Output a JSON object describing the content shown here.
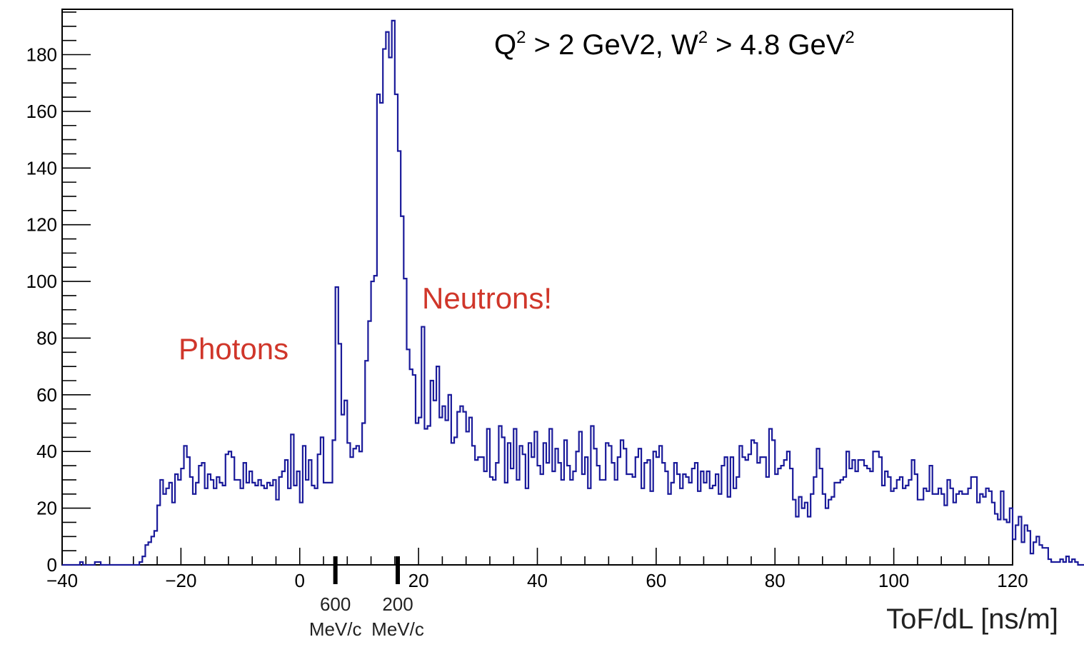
{
  "chart_data": {
    "type": "histogram",
    "title_parts": [
      {
        "text": "Q",
        "sup": false
      },
      {
        "text": "2",
        "sup": true
      },
      {
        "text": " > 2 GeV2, W",
        "sup": false
      },
      {
        "text": "2",
        "sup": true
      },
      {
        "text": " > 4.8 GeV",
        "sup": false
      },
      {
        "text": "2",
        "sup": true
      }
    ],
    "xlabel": "ToF/dL  [ns/m]",
    "xlim": [
      -40,
      120
    ],
    "ylim": [
      0,
      196
    ],
    "x_ticks": [
      -40,
      -20,
      0,
      20,
      40,
      60,
      80,
      100,
      120
    ],
    "x_tick_labels": [
      "−40",
      "−20",
      "0",
      "20",
      "40",
      "60",
      "80",
      "100",
      "120"
    ],
    "y_ticks": [
      0,
      20,
      40,
      60,
      80,
      100,
      120,
      140,
      160,
      180
    ],
    "y_tick_labels": [
      "0",
      "20",
      "40",
      "60",
      "80",
      "100",
      "120",
      "140",
      "160",
      "180"
    ],
    "bin_start": -40,
    "bin_width": 0.5,
    "counts": [
      0,
      0,
      0,
      0,
      0,
      0,
      1,
      0,
      0,
      0,
      0,
      1,
      1,
      0,
      0,
      0,
      0,
      0,
      0,
      0,
      0,
      0,
      0,
      0,
      0,
      0,
      1,
      3,
      7,
      8,
      10,
      12,
      21,
      30,
      25,
      27,
      29,
      22,
      32,
      30,
      34,
      42,
      38,
      31,
      25,
      29,
      35,
      36,
      27,
      32,
      30,
      27,
      31,
      29,
      28,
      39,
      40,
      38,
      30,
      30,
      27,
      36,
      29,
      33,
      29,
      28,
      30,
      28,
      27,
      29,
      28,
      30,
      23,
      31,
      33,
      37,
      27,
      46,
      28,
      33,
      22,
      42,
      30,
      37,
      28,
      27,
      39,
      45,
      29,
      29,
      29,
      44,
      98,
      78,
      53,
      58,
      43,
      38,
      41,
      42,
      40,
      50,
      72,
      86,
      100,
      102,
      166,
      163,
      182,
      188,
      179,
      192,
      166,
      146,
      123,
      101,
      76,
      69,
      67,
      50,
      52,
      84,
      48,
      49,
      65,
      58,
      70,
      52,
      56,
      51,
      60,
      43,
      45,
      54,
      56,
      54,
      47,
      52,
      42,
      37,
      38,
      38,
      33,
      48,
      31,
      30,
      36,
      49,
      45,
      29,
      43,
      34,
      48,
      30,
      42,
      39,
      27,
      43,
      38,
      47,
      35,
      32,
      43,
      36,
      48,
      33,
      41,
      36,
      30,
      44,
      35,
      30,
      33,
      40,
      47,
      32,
      38,
      27,
      49,
      41,
      35,
      30,
      30,
      43,
      42,
      36,
      30,
      38,
      44,
      41,
      32,
      32,
      31,
      38,
      41,
      27,
      36,
      37,
      26,
      40,
      38,
      42,
      36,
      33,
      25,
      29,
      36,
      32,
      27,
      32,
      31,
      29,
      34,
      36,
      26,
      33,
      29,
      33,
      27,
      28,
      32,
      25,
      35,
      38,
      24,
      38,
      27,
      31,
      42,
      38,
      37,
      39,
      44,
      43,
      36,
      38,
      38,
      31,
      48,
      44,
      32,
      34,
      35,
      37,
      40,
      34,
      23,
      17,
      24,
      20,
      22,
      17,
      25,
      31,
      41,
      34,
      25,
      20,
      23,
      24,
      29,
      29,
      30,
      31,
      40,
      34,
      37,
      33,
      37,
      37,
      35,
      34,
      33,
      40,
      40,
      38,
      28,
      33,
      31,
      26,
      27,
      30,
      31,
      27,
      28,
      30,
      37,
      32,
      23,
      23,
      27,
      26,
      35,
      25,
      25,
      27,
      25,
      21,
      30,
      27,
      22,
      25,
      26,
      25,
      25,
      27,
      31,
      31,
      22,
      25,
      24,
      27,
      26,
      22,
      18,
      16,
      26,
      16,
      15,
      20,
      9,
      14,
      17,
      8,
      14,
      12,
      4,
      8,
      10,
      7,
      6,
      6,
      2,
      1,
      1,
      1,
      2,
      1,
      3,
      1,
      2,
      1,
      0,
      0,
      0,
      0,
      1,
      0,
      0,
      0,
      0,
      0,
      0,
      0,
      0,
      0,
      0,
      0,
      0,
      0,
      0,
      0,
      0,
      0,
      0,
      0,
      0,
      0,
      0,
      0,
      0,
      0,
      0,
      0,
      0,
      0,
      0,
      0,
      0,
      0,
      0,
      0,
      0,
      0,
      0,
      0,
      0,
      0,
      0,
      0,
      0,
      0,
      0,
      0,
      0,
      0,
      0,
      0,
      0,
      0,
      0,
      0
    ],
    "line_color": "#1a1a9a",
    "annotations": [
      {
        "text": "Photons",
        "x": -20.2,
        "y": 78.5,
        "color": "#d0362a"
      },
      {
        "text": "Neutrons!",
        "x": 21,
        "y": 95,
        "color": "#d0362a"
      }
    ],
    "momentum_markers": [
      {
        "x": 6,
        "line1": "600",
        "line2": "MeV/c"
      },
      {
        "x": 16.5,
        "line1": "200",
        "line2": "MeV/c"
      }
    ],
    "grid": false,
    "legend": "none"
  }
}
